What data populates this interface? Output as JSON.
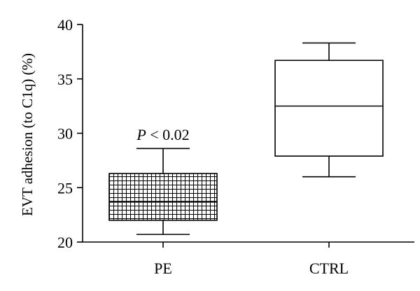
{
  "chart_data": {
    "type": "box",
    "ylabel": "EVT adhesion (to C1q) (%)",
    "xlabel": "",
    "ylim": [
      20,
      40
    ],
    "yticks": [
      20,
      25,
      30,
      35,
      40
    ],
    "categories": [
      "PE",
      "CTRL"
    ],
    "boxes": [
      {
        "category": "PE",
        "min": 20.7,
        "q1": 22.0,
        "median": 23.7,
        "q3": 26.3,
        "max": 28.6,
        "fill": "crosshatch"
      },
      {
        "category": "CTRL",
        "min": 26.0,
        "q1": 27.9,
        "median": 32.5,
        "q3": 36.7,
        "max": 38.3,
        "fill": "none"
      }
    ],
    "annotations": [
      {
        "category": "PE",
        "at_value": 29.4,
        "italic": "P",
        "rest": " < 0.02"
      }
    ],
    "grid": false,
    "legend": "none"
  }
}
